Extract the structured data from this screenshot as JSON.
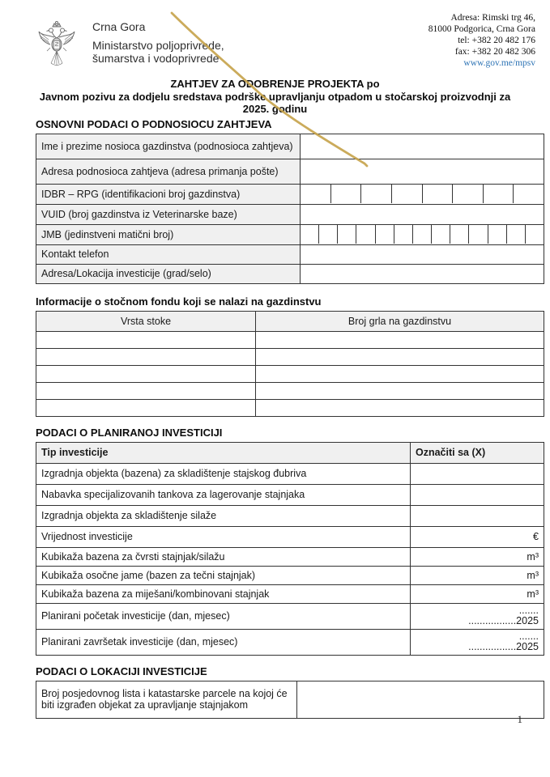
{
  "header": {
    "country": "Crna Gora",
    "ministry_line1": "Ministarstvo poljoprivrede,",
    "ministry_line2": "šumarstva i vodoprivrede",
    "address_line1": "Adresa: Rimski trg 46,",
    "address_line2": "81000 Podgorica, Crna Gora",
    "address_line3": "tel: +382 20 482 176",
    "address_line4": "fax: +382 20 482 306",
    "website": "www.gov.me/mpsv",
    "link_color": "#2E74B5"
  },
  "title": {
    "line1": "ZAHTJEV ZA ODOBRENJE PROJEKTA po",
    "line2": "Javnom pozivu za dodjelu sredstava podrške upravljanju otpadom u stočarskoj proizvodnji za",
    "line3": "2025. godinu"
  },
  "section_basic": {
    "heading": "OSNOVNI PODACI O PODNOSIOCU ZAHTJEVA",
    "rows": [
      {
        "label": "Ime i prezime nosioca gazdinstva (podnosioca zahtjeva)",
        "type": "blank"
      },
      {
        "label": "Adresa podnosioca zahtjeva (adresa primanja pošte)",
        "type": "blank"
      },
      {
        "label": "IDBR – RPG (identifikacioni broj gazdinstva)",
        "type": "boxes",
        "box_count": 8
      },
      {
        "label": "VUID (broj gazdinstva iz Veterinarske baze)",
        "type": "blank"
      },
      {
        "label": "JMB (jedinstveni matični broj)",
        "type": "boxes",
        "box_count": 13
      },
      {
        "label": "Kontakt telefon",
        "type": "blank"
      },
      {
        "label": "Adresa/Lokacija investicije (grad/selo)",
        "type": "blank"
      }
    ]
  },
  "section_livestock": {
    "heading": "Informacije o stočnom fondu koji se nalazi na gazdinstvu",
    "col1": "Vrsta stoke",
    "col2": "Broj grla na gazdinstvu",
    "empty_rows": 5
  },
  "section_investment": {
    "heading": "PODACI O PLANIRANOJ INVESTICIJI",
    "col1": "Tip investicije",
    "col2": "Označiti sa (X)",
    "rows": [
      {
        "label": "Izgradnja objekta (bazena) za skladištenje stajskog đubriva",
        "value": ""
      },
      {
        "label": "Nabavka specijalizovanih tankova za lagerovanje stajnjaka",
        "value": ""
      },
      {
        "label": "Izgradnja objekta za skladištenje silaže",
        "value": ""
      },
      {
        "label": "Vrijednost investicije",
        "value": "€"
      },
      {
        "label": "Kubikaža bazena za čvrsti stajnjak/silažu",
        "value": "m³"
      },
      {
        "label": "Kubikaža osočne jame (bazen za tečni stajnjak)",
        "value": "m³"
      },
      {
        "label": "Kubikaža bazena za miješani/kombinovani stajnjak",
        "value": "m³"
      },
      {
        "label": "Planirani početak investicije (dan, mjesec)",
        "value_line1": ".......",
        "value_line2": ".................2025"
      },
      {
        "label": "Planirani završetak investicije (dan, mjesec)",
        "value_line1": ".......",
        "value_line2": ".................2025"
      }
    ]
  },
  "section_location": {
    "heading": "PODACI O LOKACIJI INVESTICIJE",
    "rows": [
      {
        "label": "Broj posjedovnog lista i katastarske parcele na kojoj će biti izgrađen objekat za upravljanje stajnjakom"
      }
    ]
  },
  "page_number": "1",
  "annotation": {
    "color": "#C7A44D"
  }
}
